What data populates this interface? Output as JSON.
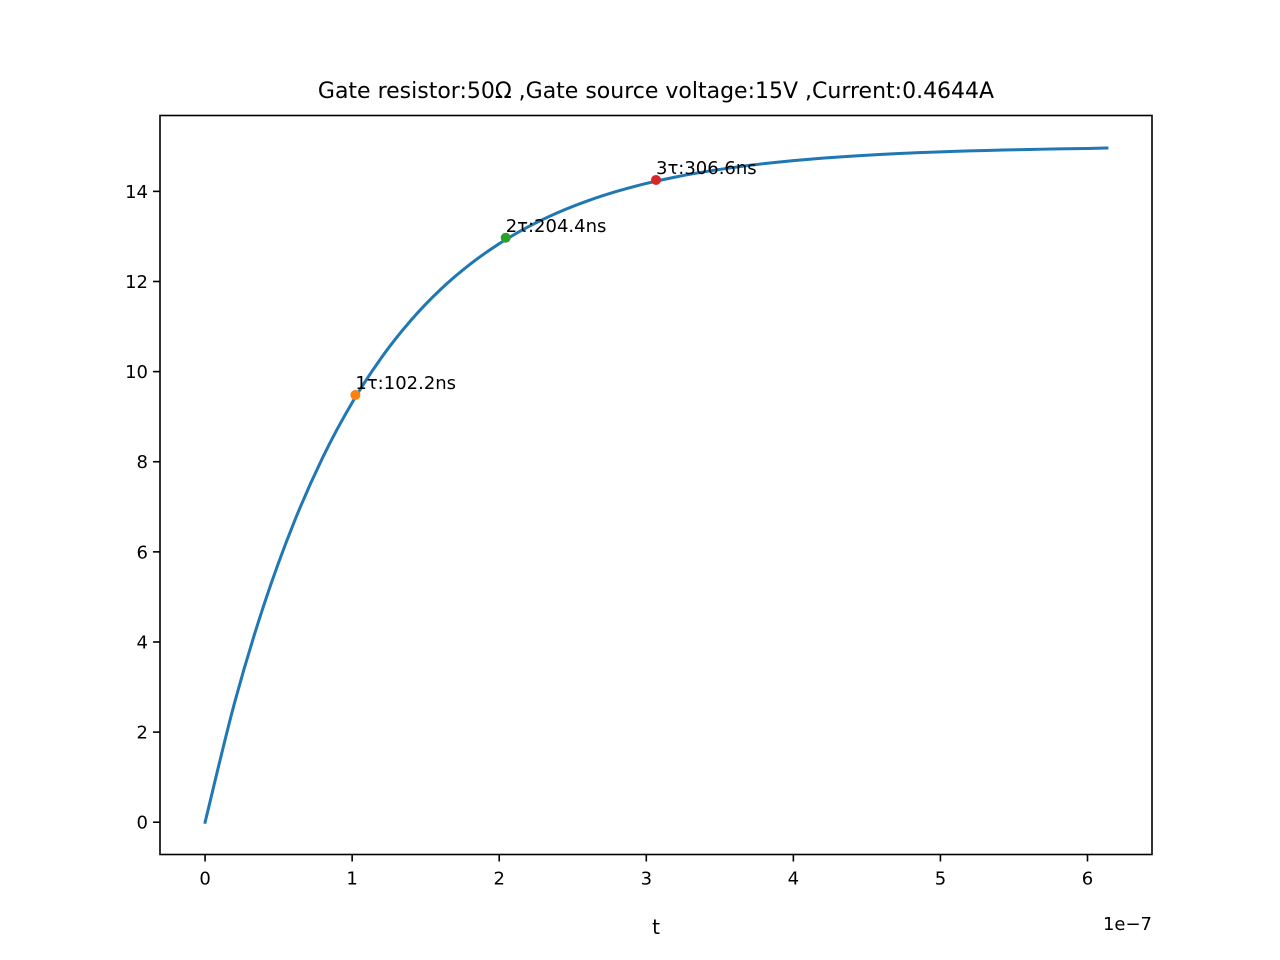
{
  "chart_data": {
    "type": "line",
    "title": "Gate resistor:50Ω ,Gate source voltage:15V ,Current:0.4644A",
    "xlabel": "t",
    "ylabel": "",
    "x_offset_label": "1e−7",
    "xlim": [
      -0.3066,
      6.4386
    ],
    "ylim": [
      -0.7163,
      15.6837
    ],
    "xticks": [
      0,
      1,
      2,
      3,
      4,
      5,
      6
    ],
    "xtick_labels": [
      "0",
      "1",
      "2",
      "3",
      "4",
      "5",
      "6"
    ],
    "yticks": [
      0,
      2,
      4,
      6,
      8,
      10,
      12,
      14
    ],
    "ytick_labels": [
      "0",
      "2",
      "4",
      "6",
      "8",
      "10",
      "12",
      "14"
    ],
    "grid": false,
    "series": [
      {
        "color": "#1f77b4",
        "x": [
          0,
          0.2,
          0.4,
          0.6,
          0.8,
          1.0,
          1.2,
          1.4,
          1.6,
          1.8,
          2.0,
          2.2,
          2.4,
          2.6,
          2.8,
          3.0,
          3.2,
          3.4,
          3.6,
          3.8,
          4.0,
          4.2,
          4.4,
          4.6,
          4.8,
          5.0,
          5.2,
          5.4,
          5.6,
          5.8,
          6.0,
          6.132
        ],
        "y": [
          0,
          2.646,
          4.824,
          6.618,
          8.096,
          9.312,
          10.314,
          11.139,
          11.819,
          12.378,
          12.839,
          13.218,
          13.531,
          13.788,
          14.0,
          14.175,
          14.319,
          14.437,
          14.534,
          14.615,
          14.681,
          14.737,
          14.782,
          14.82,
          14.851,
          14.877,
          14.898,
          14.916,
          14.93,
          14.942,
          14.952,
          14.963
        ]
      }
    ],
    "markers": [
      {
        "x": 1.022,
        "y": 9.482,
        "label": "1τ:102.2ns",
        "color": "#ff7f0e"
      },
      {
        "x": 2.044,
        "y": 12.97,
        "label": "2τ:204.4ns",
        "color": "#2ca02c"
      },
      {
        "x": 3.066,
        "y": 14.253,
        "label": "3τ:306.6ns",
        "color": "#d62728"
      }
    ]
  }
}
